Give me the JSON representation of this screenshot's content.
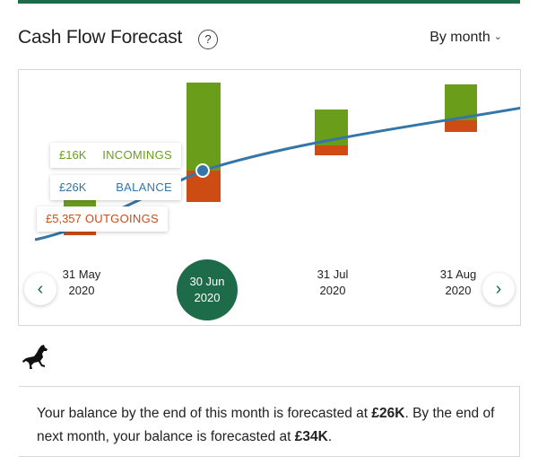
{
  "header": {
    "title": "Cash Flow Forecast",
    "help_symbol": "?",
    "period_label": "By month"
  },
  "colors": {
    "brand": "#1e6b4a",
    "incomings": "#6a9e1a",
    "balance": "#3576a8",
    "outgoings": "#cc4c14"
  },
  "tooltip": {
    "incomings_amount": "£16K",
    "incomings_label": "INCOMINGS",
    "balance_amount": "£26K",
    "balance_label": "BALANCE",
    "outgoings_amount": "£5,357",
    "outgoings_label": "OUTGOINGS"
  },
  "dates": [
    {
      "day": "31 May",
      "year": "2020",
      "selected": false
    },
    {
      "day": "30 Jun",
      "year": "2020",
      "selected": true
    },
    {
      "day": "31 Jul",
      "year": "2020",
      "selected": false
    },
    {
      "day": "31 Aug",
      "year": "2020",
      "selected": false
    }
  ],
  "nav": {
    "prev_icon": "chevron-left-icon",
    "next_icon": "chevron-right-icon"
  },
  "message": {
    "part1": "Your balance by the end of this month is forecasted at ",
    "balance_this_month": "£26K",
    "part2": ". By the end of next month, your balance is forecasted at ",
    "balance_next_month": "£34K",
    "part3": "."
  }
}
